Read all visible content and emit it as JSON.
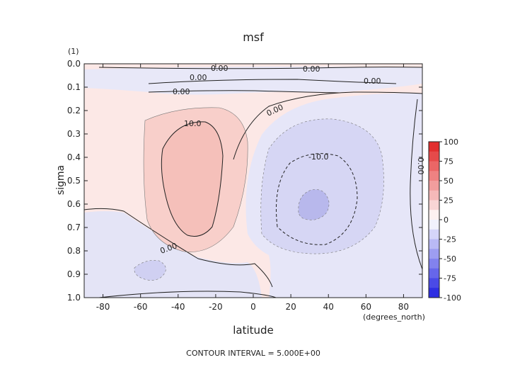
{
  "chart_data": {
    "type": "contour",
    "title": "msf",
    "xlabel": "latitude",
    "ylabel": "sigma",
    "x_unit_note": "(degrees_north)",
    "y_unit_note": "(1)",
    "footer": "CONTOUR INTERVAL = 5.000E+00",
    "xlim": [
      -90,
      90
    ],
    "ylim": [
      0.0,
      1.0
    ],
    "y_inverted": true,
    "x_ticks": [
      -80,
      -60,
      -40,
      -20,
      0,
      20,
      40,
      60,
      80
    ],
    "y_ticks": [
      "0.0",
      "0.1",
      "0.2",
      "0.3",
      "0.4",
      "0.5",
      "0.6",
      "0.7",
      "0.8",
      "0.9",
      "1.0"
    ],
    "contour_interval": 5.0,
    "contour_labels": [
      "0.00",
      "0.00",
      "0.00",
      "0.00",
      "0.00",
      "0.00",
      "10.0",
      "-10.0",
      "0.00",
      "0.00"
    ],
    "features": [
      {
        "name": "positive cell",
        "center_lat": -30,
        "center_sigma": 0.45,
        "max_level": 10.0
      },
      {
        "name": "negative cell",
        "center_lat": 30,
        "center_sigma": 0.55,
        "min_level": -15.0
      },
      {
        "name": "small negative cell",
        "center_lat": -50,
        "center_sigma": 0.88,
        "min_level": -5.0
      }
    ],
    "colorbar": {
      "ticks": [
        "100",
        "75",
        "50",
        "25",
        "0",
        "-25",
        "-50",
        "-75",
        "-100"
      ],
      "colormap": "blue-white-red",
      "positive_color": "#e02020",
      "negative_color": "#2020e0"
    }
  }
}
